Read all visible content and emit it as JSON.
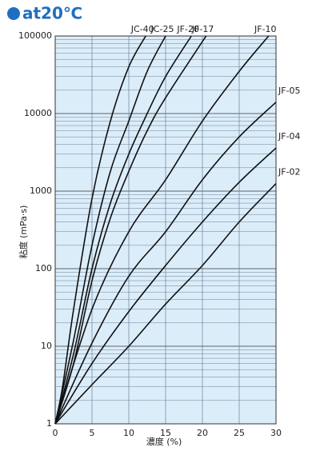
{
  "chart_data": {
    "type": "line",
    "title": "at20℃",
    "x_label": "濃度 (%)",
    "y_label": "粘度 (mPa·s)",
    "xlim": [
      0,
      30
    ],
    "xticks": [
      0,
      5,
      10,
      15,
      20,
      25,
      30
    ],
    "ylim": [
      1,
      100000
    ],
    "yticks": [
      1,
      10,
      100,
      1000,
      10000,
      100000
    ],
    "log_y": true,
    "grid": true,
    "series": [
      {
        "name": "JC-40",
        "color": "#111111",
        "x": [
          0,
          1,
          2.5,
          5,
          7.5,
          10,
          12.3
        ],
        "values": [
          1,
          3,
          30,
          800,
          8000,
          40000,
          100000
        ]
      },
      {
        "name": "JC-25",
        "color": "#111111",
        "x": [
          0,
          2.5,
          5,
          7.5,
          10,
          12.5,
          15
        ],
        "values": [
          1,
          12,
          200,
          1800,
          8000,
          35000,
          100000
        ]
      },
      {
        "name": "JF-20",
        "color": "#111111",
        "x": [
          0,
          2.5,
          5,
          7.5,
          10,
          12.5,
          15,
          18.5
        ],
        "values": [
          1,
          8,
          100,
          700,
          3000,
          10000,
          30000,
          100000
        ]
      },
      {
        "name": "JF-17",
        "color": "#111111",
        "x": [
          0,
          2.5,
          5,
          7.5,
          10,
          12.5,
          15,
          20.5
        ],
        "values": [
          1,
          6,
          70,
          450,
          1800,
          6000,
          16000,
          100000
        ]
      },
      {
        "name": "JF-10",
        "color": "#111111",
        "x": [
          0,
          5,
          10,
          15,
          20,
          25,
          29
        ],
        "values": [
          1,
          30,
          300,
          1400,
          8000,
          35000,
          100000
        ]
      },
      {
        "name": "JF-05",
        "color": "#111111",
        "x": [
          0,
          5,
          10,
          15,
          20,
          25,
          30
        ],
        "values": [
          1,
          11,
          80,
          300,
          1400,
          5000,
          14000
        ]
      },
      {
        "name": "JF-04",
        "color": "#111111",
        "x": [
          0,
          5,
          10,
          15,
          20,
          25,
          30
        ],
        "values": [
          1,
          6,
          28,
          110,
          400,
          1300,
          3600
        ]
      },
      {
        "name": "JF-02",
        "color": "#111111",
        "x": [
          0,
          5,
          10,
          15,
          20,
          25,
          30
        ],
        "values": [
          1,
          3.2,
          10,
          35,
          110,
          400,
          1250
        ]
      }
    ]
  }
}
